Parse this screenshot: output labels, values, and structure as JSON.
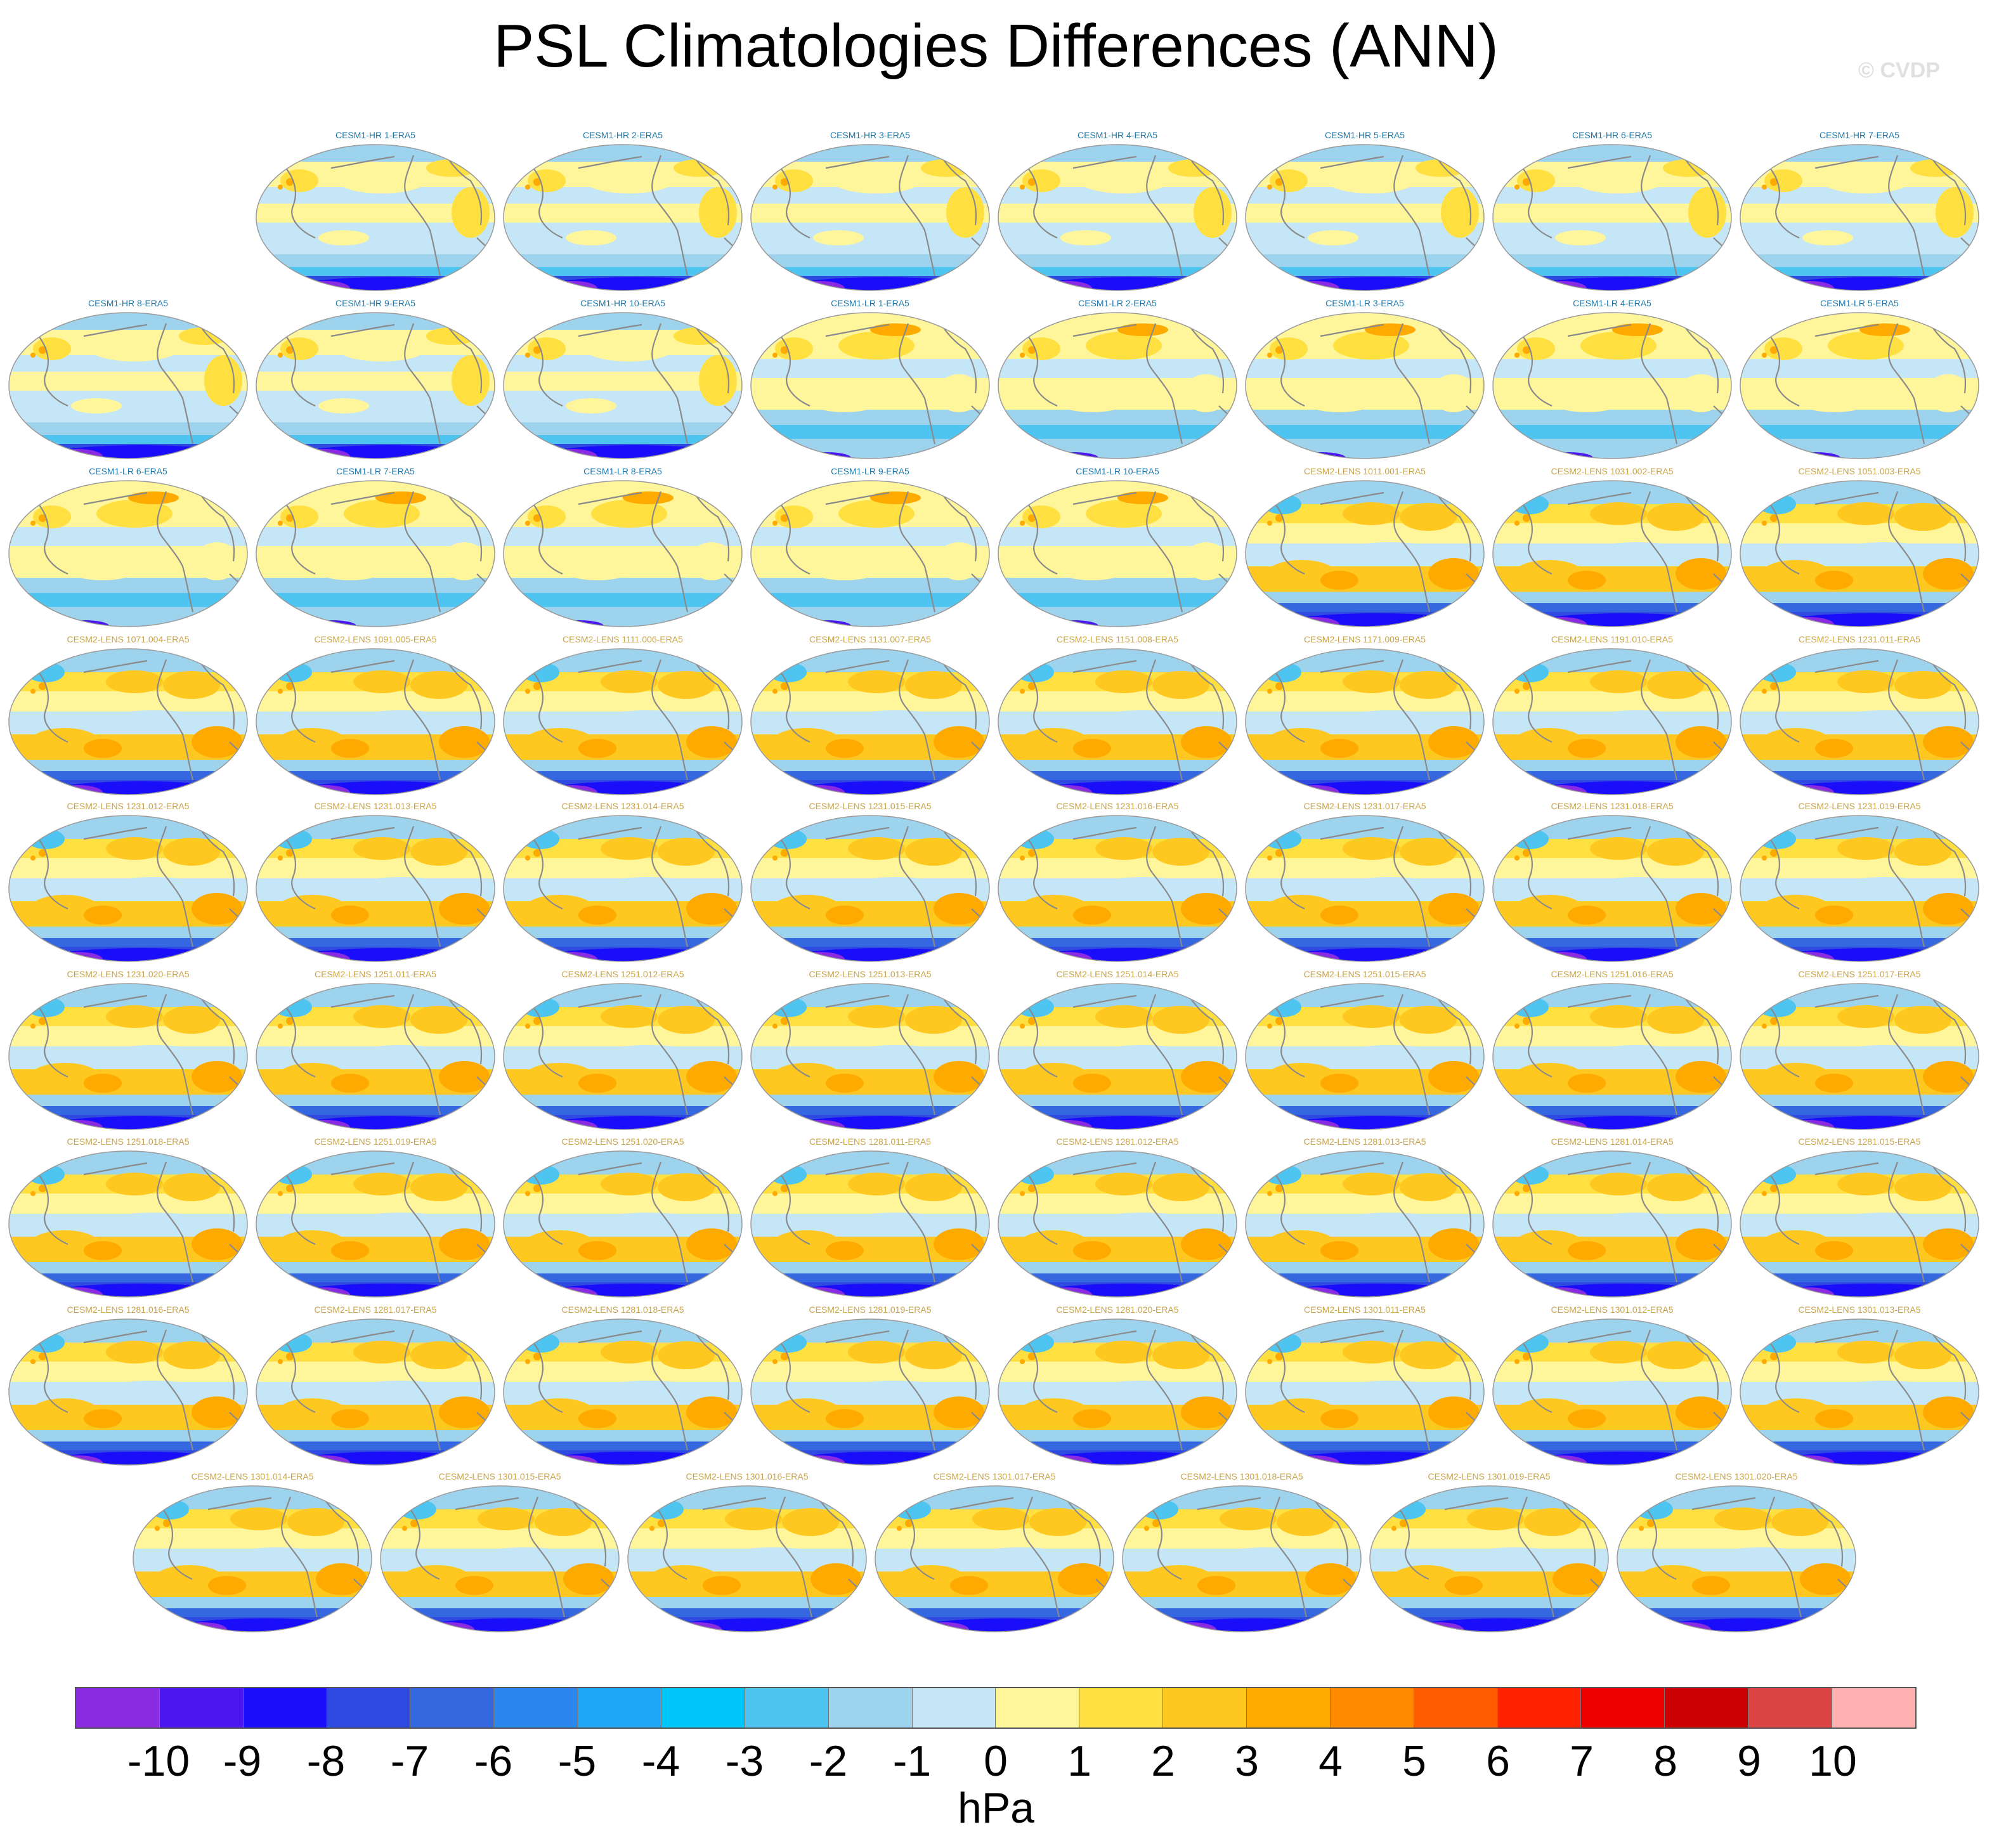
{
  "title": "PSL Climatologies Differences (ANN)",
  "watermark": "© CVDP",
  "units": "hPa",
  "colors": {
    "hr_label": "#1f77a8",
    "lens_label": "#c9a449",
    "coast": "#8a8a8a",
    "frame": "#9a9a9a"
  },
  "colorbar": {
    "colors": [
      "#8a2be2",
      "#4b16ef",
      "#1a0dfa",
      "#2e4ae0",
      "#3568e0",
      "#2b86f0",
      "#1ea6f7",
      "#00c6fa",
      "#4ec4f0",
      "#9ed3ee",
      "#c5e6f7",
      "#fff59a",
      "#ffe040",
      "#ffc820",
      "#ffaa00",
      "#ff8a00",
      "#ff5c00",
      "#ff2200",
      "#ee0000",
      "#cc0000",
      "#dd4444",
      "#ffb0b0"
    ],
    "tick_labels": [
      "-10",
      "-9",
      "-8",
      "-7",
      "-6",
      "-5",
      "-4",
      "-3",
      "-2",
      "-1",
      "0",
      "1",
      "2",
      "3",
      "4",
      "5",
      "6",
      "7",
      "8",
      "9",
      "10"
    ]
  },
  "panel_rows": [
    {
      "panels": [
        {
          "label": "CESM1-HR 1-ERA5",
          "group": "hr"
        },
        {
          "label": "CESM1-HR 2-ERA5",
          "group": "hr"
        },
        {
          "label": "CESM1-HR 3-ERA5",
          "group": "hr"
        },
        {
          "label": "CESM1-HR 4-ERA5",
          "group": "hr"
        },
        {
          "label": "CESM1-HR 5-ERA5",
          "group": "hr"
        },
        {
          "label": "CESM1-HR 6-ERA5",
          "group": "hr"
        },
        {
          "label": "CESM1-HR 7-ERA5",
          "group": "hr"
        }
      ]
    },
    {
      "panels": [
        {
          "label": "CESM1-HR 8-ERA5",
          "group": "hr"
        },
        {
          "label": "CESM1-HR 9-ERA5",
          "group": "hr"
        },
        {
          "label": "CESM1-HR 10-ERA5",
          "group": "hr"
        },
        {
          "label": "CESM1-LR 1-ERA5",
          "group": "lr"
        },
        {
          "label": "CESM1-LR 2-ERA5",
          "group": "lr"
        },
        {
          "label": "CESM1-LR 3-ERA5",
          "group": "lr"
        },
        {
          "label": "CESM1-LR 4-ERA5",
          "group": "lr"
        },
        {
          "label": "CESM1-LR 5-ERA5",
          "group": "lr"
        }
      ]
    },
    {
      "panels": [
        {
          "label": "CESM1-LR 6-ERA5",
          "group": "lr"
        },
        {
          "label": "CESM1-LR 7-ERA5",
          "group": "lr"
        },
        {
          "label": "CESM1-LR 8-ERA5",
          "group": "lr"
        },
        {
          "label": "CESM1-LR 9-ERA5",
          "group": "lr"
        },
        {
          "label": "CESM1-LR 10-ERA5",
          "group": "lr"
        },
        {
          "label": "CESM2-LENS 1011.001-ERA5",
          "group": "lens"
        },
        {
          "label": "CESM2-LENS 1031.002-ERA5",
          "group": "lens"
        },
        {
          "label": "CESM2-LENS 1051.003-ERA5",
          "group": "lens"
        }
      ]
    },
    {
      "panels": [
        {
          "label": "CESM2-LENS 1071.004-ERA5",
          "group": "lens"
        },
        {
          "label": "CESM2-LENS 1091.005-ERA5",
          "group": "lens"
        },
        {
          "label": "CESM2-LENS 1111.006-ERA5",
          "group": "lens"
        },
        {
          "label": "CESM2-LENS 1131.007-ERA5",
          "group": "lens"
        },
        {
          "label": "CESM2-LENS 1151.008-ERA5",
          "group": "lens"
        },
        {
          "label": "CESM2-LENS 1171.009-ERA5",
          "group": "lens"
        },
        {
          "label": "CESM2-LENS 1191.010-ERA5",
          "group": "lens"
        },
        {
          "label": "CESM2-LENS 1231.011-ERA5",
          "group": "lens"
        }
      ]
    },
    {
      "panels": [
        {
          "label": "CESM2-LENS 1231.012-ERA5",
          "group": "lens"
        },
        {
          "label": "CESM2-LENS 1231.013-ERA5",
          "group": "lens"
        },
        {
          "label": "CESM2-LENS 1231.014-ERA5",
          "group": "lens"
        },
        {
          "label": "CESM2-LENS 1231.015-ERA5",
          "group": "lens"
        },
        {
          "label": "CESM2-LENS 1231.016-ERA5",
          "group": "lens"
        },
        {
          "label": "CESM2-LENS 1231.017-ERA5",
          "group": "lens"
        },
        {
          "label": "CESM2-LENS 1231.018-ERA5",
          "group": "lens"
        },
        {
          "label": "CESM2-LENS 1231.019-ERA5",
          "group": "lens"
        }
      ]
    },
    {
      "panels": [
        {
          "label": "CESM2-LENS 1231.020-ERA5",
          "group": "lens"
        },
        {
          "label": "CESM2-LENS 1251.011-ERA5",
          "group": "lens"
        },
        {
          "label": "CESM2-LENS 1251.012-ERA5",
          "group": "lens"
        },
        {
          "label": "CESM2-LENS 1251.013-ERA5",
          "group": "lens"
        },
        {
          "label": "CESM2-LENS 1251.014-ERA5",
          "group": "lens"
        },
        {
          "label": "CESM2-LENS 1251.015-ERA5",
          "group": "lens"
        },
        {
          "label": "CESM2-LENS 1251.016-ERA5",
          "group": "lens"
        },
        {
          "label": "CESM2-LENS 1251.017-ERA5",
          "group": "lens"
        }
      ]
    },
    {
      "panels": [
        {
          "label": "CESM2-LENS 1251.018-ERA5",
          "group": "lens"
        },
        {
          "label": "CESM2-LENS 1251.019-ERA5",
          "group": "lens"
        },
        {
          "label": "CESM2-LENS 1251.020-ERA5",
          "group": "lens"
        },
        {
          "label": "CESM2-LENS 1281.011-ERA5",
          "group": "lens"
        },
        {
          "label": "CESM2-LENS 1281.012-ERA5",
          "group": "lens"
        },
        {
          "label": "CESM2-LENS 1281.013-ERA5",
          "group": "lens"
        },
        {
          "label": "CESM2-LENS 1281.014-ERA5",
          "group": "lens"
        },
        {
          "label": "CESM2-LENS 1281.015-ERA5",
          "group": "lens"
        }
      ]
    },
    {
      "panels": [
        {
          "label": "CESM2-LENS 1281.016-ERA5",
          "group": "lens"
        },
        {
          "label": "CESM2-LENS 1281.017-ERA5",
          "group": "lens"
        },
        {
          "label": "CESM2-LENS 1281.018-ERA5",
          "group": "lens"
        },
        {
          "label": "CESM2-LENS 1281.019-ERA5",
          "group": "lens"
        },
        {
          "label": "CESM2-LENS 1281.020-ERA5",
          "group": "lens"
        },
        {
          "label": "CESM2-LENS 1301.011-ERA5",
          "group": "lens"
        },
        {
          "label": "CESM2-LENS 1301.012-ERA5",
          "group": "lens"
        },
        {
          "label": "CESM2-LENS 1301.013-ERA5",
          "group": "lens"
        }
      ]
    },
    {
      "panels": [
        {
          "label": "CESM2-LENS 1301.014-ERA5",
          "group": "lens"
        },
        {
          "label": "CESM2-LENS 1301.015-ERA5",
          "group": "lens"
        },
        {
          "label": "CESM2-LENS 1301.016-ERA5",
          "group": "lens"
        },
        {
          "label": "CESM2-LENS 1301.017-ERA5",
          "group": "lens"
        },
        {
          "label": "CESM2-LENS 1301.018-ERA5",
          "group": "lens"
        },
        {
          "label": "CESM2-LENS 1301.019-ERA5",
          "group": "lens"
        },
        {
          "label": "CESM2-LENS 1301.020-ERA5",
          "group": "lens"
        }
      ]
    }
  ]
}
